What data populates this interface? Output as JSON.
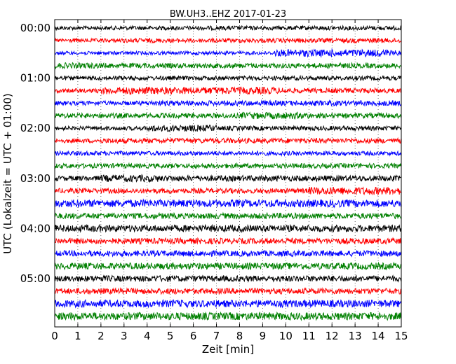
{
  "chart_data": {
    "type": "line",
    "title": "BW.UH3..EHZ 2017-01-23",
    "xlabel": "Zeit  [min]",
    "ylabel": "UTC (Lokalzeit = UTC + 01:00)",
    "xlim": [
      0,
      15
    ],
    "x_ticks": [
      "0",
      "1",
      "2",
      "3",
      "4",
      "5",
      "6",
      "7",
      "8",
      "9",
      "10",
      "11",
      "12",
      "13",
      "14",
      "15"
    ],
    "y_ticks": [
      "00:00",
      "01:00",
      "02:00",
      "03:00",
      "04:00",
      "05:00"
    ],
    "grid": true,
    "colors": [
      "#000000",
      "#ff0000",
      "#0000ff",
      "#008000"
    ],
    "series": [
      {
        "values": [
          0.32,
          0.3,
          0.3,
          0.3,
          0.3,
          0.3,
          0.32,
          0.32,
          0.32,
          0.32,
          0.32,
          0.32,
          0.32,
          0.34,
          0.34,
          0.34,
          0.34,
          0.34,
          0.34,
          0.34,
          0.34,
          0.34,
          0.34,
          0.34,
          0.34,
          0.34,
          0.34,
          0.34,
          0.34,
          0.34
        ]
      },
      {
        "values": [
          0.3,
          0.3,
          0.3,
          0.3,
          0.32,
          0.32,
          0.36,
          0.36,
          0.36,
          0.34,
          0.34,
          0.34,
          0.34,
          0.34,
          0.34,
          0.34,
          0.34,
          0.34,
          0.34,
          0.36,
          0.36,
          0.36,
          0.36,
          0.36,
          0.36,
          0.38,
          0.38,
          0.38,
          0.38,
          0.36
        ]
      },
      {
        "values": [
          0.28,
          0.28,
          0.28,
          0.28,
          0.28,
          0.28,
          0.28,
          0.28,
          0.28,
          0.28,
          0.28,
          0.28,
          0.28,
          0.28,
          0.28,
          0.28,
          0.28,
          0.28,
          0.28,
          0.58,
          0.58,
          0.58,
          0.58,
          0.58,
          0.58,
          0.58,
          0.58,
          0.58,
          0.58,
          0.42
        ]
      },
      {
        "values": [
          0.46,
          0.46,
          0.46,
          0.46,
          0.4,
          0.4,
          0.4,
          0.4,
          0.4,
          0.4,
          0.4,
          0.4,
          0.4,
          0.4,
          0.4,
          0.4,
          0.4,
          0.4,
          0.4,
          0.4,
          0.4,
          0.4,
          0.4,
          0.4,
          0.4,
          0.4,
          0.4,
          0.4,
          0.4,
          0.4
        ]
      },
      {
        "values": [
          0.34,
          0.34,
          0.34,
          0.34,
          0.34,
          0.34,
          0.34,
          0.34,
          0.34,
          0.34,
          0.34,
          0.34,
          0.34,
          0.34,
          0.34,
          0.34,
          0.34,
          0.34,
          0.34,
          0.34,
          0.34,
          0.34,
          0.34,
          0.34,
          0.34,
          0.34,
          0.34,
          0.34,
          0.34,
          0.34
        ]
      },
      {
        "values": [
          0.34,
          0.34,
          0.34,
          0.34,
          0.58,
          0.58,
          0.58,
          0.58,
          0.58,
          0.58,
          0.58,
          0.58,
          0.58,
          0.58,
          0.58,
          0.58,
          0.58,
          0.58,
          0.58,
          0.5,
          0.4,
          0.4,
          0.4,
          0.4,
          0.4,
          0.4,
          0.4,
          0.4,
          0.4,
          0.4
        ]
      },
      {
        "values": [
          0.34,
          0.34,
          0.34,
          0.34,
          0.34,
          0.34,
          0.34,
          0.34,
          0.42,
          0.42,
          0.42,
          0.42,
          0.42,
          0.42,
          0.42,
          0.42,
          0.42,
          0.42,
          0.42,
          0.42,
          0.42,
          0.42,
          0.42,
          0.42,
          0.42,
          0.42,
          0.42,
          0.42,
          0.42,
          0.42
        ]
      },
      {
        "values": [
          0.4,
          0.4,
          0.4,
          0.4,
          0.4,
          0.4,
          0.4,
          0.4,
          0.4,
          0.4,
          0.4,
          0.4,
          0.4,
          0.4,
          0.4,
          0.4,
          0.54,
          0.54,
          0.54,
          0.54,
          0.54,
          0.54,
          0.4,
          0.4,
          0.4,
          0.4,
          0.4,
          0.4,
          0.4,
          0.4
        ]
      },
      {
        "values": [
          0.32,
          0.32,
          0.32,
          0.32,
          0.32,
          0.32,
          0.32,
          0.32,
          0.52,
          0.52,
          0.52,
          0.52,
          0.52,
          0.52,
          0.36,
          0.36,
          0.36,
          0.36,
          0.36,
          0.36,
          0.36,
          0.36,
          0.36,
          0.36,
          0.36,
          0.36,
          0.36,
          0.36,
          0.36,
          0.36
        ]
      },
      {
        "values": [
          0.34,
          0.34,
          0.34,
          0.34,
          0.4,
          0.4,
          0.4,
          0.4,
          0.4,
          0.4,
          0.4,
          0.4,
          0.4,
          0.4,
          0.4,
          0.4,
          0.4,
          0.4,
          0.4,
          0.4,
          0.4,
          0.4,
          0.4,
          0.4,
          0.4,
          0.4,
          0.4,
          0.4,
          0.4,
          0.4
        ]
      },
      {
        "values": [
          0.34,
          0.34,
          0.34,
          0.34,
          0.34,
          0.34,
          0.34,
          0.34,
          0.34,
          0.34,
          0.34,
          0.34,
          0.34,
          0.34,
          0.34,
          0.34,
          0.34,
          0.34,
          0.34,
          0.34,
          0.34,
          0.34,
          0.34,
          0.34,
          0.34,
          0.34,
          0.34,
          0.34,
          0.34,
          0.34
        ]
      },
      {
        "values": [
          0.38,
          0.38,
          0.38,
          0.38,
          0.38,
          0.38,
          0.38,
          0.38,
          0.38,
          0.38,
          0.38,
          0.38,
          0.38,
          0.38,
          0.38,
          0.38,
          0.38,
          0.38,
          0.38,
          0.38,
          0.38,
          0.38,
          0.38,
          0.38,
          0.38,
          0.38,
          0.38,
          0.38,
          0.38,
          0.38
        ]
      },
      {
        "values": [
          0.4,
          0.4,
          0.4,
          0.4,
          0.56,
          0.56,
          0.56,
          0.56,
          0.56,
          0.46,
          0.46,
          0.46,
          0.46,
          0.46,
          0.46,
          0.46,
          0.46,
          0.46,
          0.46,
          0.46,
          0.46,
          0.46,
          0.46,
          0.46,
          0.46,
          0.46,
          0.46,
          0.46,
          0.46,
          0.46
        ]
      },
      {
        "values": [
          0.4,
          0.4,
          0.4,
          0.4,
          0.4,
          0.4,
          0.4,
          0.4,
          0.4,
          0.4,
          0.4,
          0.4,
          0.4,
          0.4,
          0.4,
          0.4,
          0.4,
          0.4,
          0.4,
          0.4,
          0.4,
          0.4,
          0.62,
          0.62,
          0.62,
          0.62,
          0.62,
          0.62,
          0.62,
          0.62
        ]
      },
      {
        "values": [
          0.6,
          0.6,
          0.6,
          0.6,
          0.6,
          0.6,
          0.6,
          0.6,
          0.6,
          0.6,
          0.6,
          0.6,
          0.6,
          0.6,
          0.6,
          0.6,
          0.6,
          0.6,
          0.6,
          0.6,
          0.6,
          0.6,
          0.6,
          0.6,
          0.6,
          0.6,
          0.6,
          0.6,
          0.6,
          0.6
        ]
      },
      {
        "values": [
          0.46,
          0.46,
          0.46,
          0.46,
          0.46,
          0.46,
          0.46,
          0.46,
          0.46,
          0.46,
          0.46,
          0.46,
          0.46,
          0.46,
          0.46,
          0.46,
          0.46,
          0.46,
          0.46,
          0.46,
          0.46,
          0.46,
          0.46,
          0.46,
          0.46,
          0.46,
          0.46,
          0.46,
          0.46,
          0.46
        ]
      },
      {
        "values": [
          0.54,
          0.54,
          0.54,
          0.54,
          0.54,
          0.54,
          0.54,
          0.54,
          0.54,
          0.54,
          0.54,
          0.54,
          0.54,
          0.54,
          0.54,
          0.54,
          0.54,
          0.54,
          0.54,
          0.54,
          0.54,
          0.54,
          0.54,
          0.54,
          0.54,
          0.54,
          0.54,
          0.54,
          0.54,
          0.54
        ]
      },
      {
        "values": [
          0.46,
          0.46,
          0.46,
          0.46,
          0.46,
          0.46,
          0.46,
          0.46,
          0.46,
          0.46,
          0.46,
          0.46,
          0.46,
          0.46,
          0.46,
          0.46,
          0.46,
          0.46,
          0.46,
          0.46,
          0.46,
          0.46,
          0.46,
          0.46,
          0.46,
          0.46,
          0.46,
          0.46,
          0.46,
          0.46
        ]
      },
      {
        "values": [
          0.46,
          0.46,
          0.46,
          0.46,
          0.46,
          0.46,
          0.46,
          0.46,
          0.46,
          0.46,
          0.46,
          0.46,
          0.46,
          0.46,
          0.46,
          0.46,
          0.46,
          0.46,
          0.46,
          0.46,
          0.46,
          0.46,
          0.46,
          0.46,
          0.46,
          0.46,
          0.46,
          0.46,
          0.46,
          0.46
        ]
      },
      {
        "values": [
          0.52,
          0.52,
          0.52,
          0.52,
          0.52,
          0.52,
          0.52,
          0.52,
          0.52,
          0.52,
          0.52,
          0.52,
          0.52,
          0.52,
          0.52,
          0.52,
          0.52,
          0.52,
          0.52,
          0.52,
          0.52,
          0.52,
          0.52,
          0.52,
          0.52,
          0.52,
          0.52,
          0.52,
          0.52,
          0.52
        ]
      },
      {
        "values": [
          0.48,
          0.48,
          0.48,
          0.48,
          0.48,
          0.48,
          0.48,
          0.48,
          0.48,
          0.48,
          0.48,
          0.48,
          0.48,
          0.48,
          0.48,
          0.48,
          0.48,
          0.48,
          0.48,
          0.48,
          0.48,
          0.48,
          0.48,
          0.48,
          0.48,
          0.48,
          0.48,
          0.48,
          0.48,
          0.48
        ]
      },
      {
        "values": [
          0.46,
          0.46,
          0.46,
          0.46,
          0.46,
          0.46,
          0.46,
          0.46,
          0.46,
          0.46,
          0.46,
          0.46,
          0.46,
          0.46,
          0.46,
          0.46,
          0.46,
          0.46,
          0.46,
          0.46,
          0.46,
          0.46,
          0.46,
          0.46,
          0.46,
          0.46,
          0.46,
          0.46,
          0.46,
          0.46
        ]
      },
      {
        "values": [
          0.58,
          0.58,
          0.58,
          0.58,
          0.58,
          0.58,
          0.58,
          0.58,
          0.58,
          0.58,
          0.58,
          0.58,
          0.58,
          0.58,
          0.58,
          0.58,
          0.58,
          0.58,
          0.58,
          0.58,
          0.58,
          0.58,
          0.58,
          0.58,
          0.58,
          0.58,
          0.58,
          0.58,
          0.58,
          0.58
        ]
      },
      {
        "values": [
          0.6,
          0.6,
          0.6,
          0.6,
          0.6,
          0.6,
          0.6,
          0.6,
          0.6,
          0.6,
          0.6,
          0.6,
          0.6,
          0.6,
          0.6,
          0.6,
          0.6,
          0.6,
          0.6,
          0.6,
          0.6,
          0.6,
          0.6,
          0.6,
          0.6,
          0.6,
          0.6,
          0.6,
          0.6,
          0.6
        ]
      }
    ]
  }
}
